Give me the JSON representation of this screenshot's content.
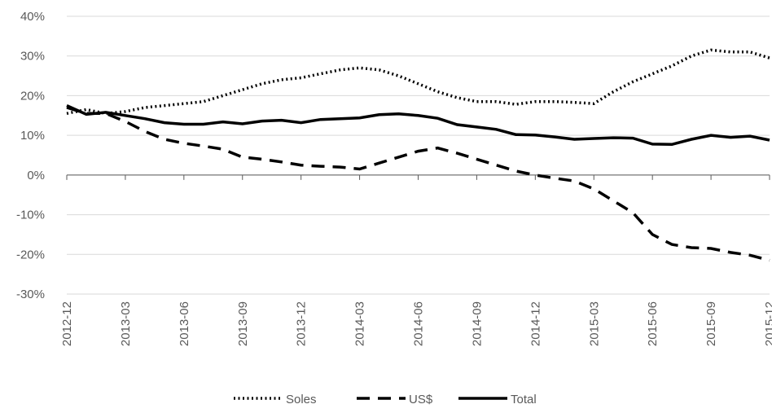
{
  "chart_data": {
    "type": "line",
    "categories": [
      "2012-12",
      null,
      null,
      "2013-03",
      null,
      null,
      "2013-06",
      null,
      null,
      "2013-09",
      null,
      null,
      "2013-12",
      null,
      null,
      "2014-03",
      null,
      null,
      "2014-06",
      null,
      null,
      "2014-09",
      null,
      null,
      "2014-12",
      null,
      null,
      "2015-03",
      null,
      null,
      "2015-06",
      null,
      null,
      "2015-09",
      null,
      null,
      "2015-12"
    ],
    "series": [
      {
        "name": "Soles",
        "color": "#000000",
        "style": "dotted",
        "values": [
          15.5,
          16.5,
          15.5,
          16,
          17,
          17.5,
          18,
          18.5,
          20,
          21.5,
          23,
          24,
          24.5,
          25.5,
          26.5,
          27,
          26.5,
          25,
          23,
          21,
          19.5,
          18.5,
          18.5,
          17.8,
          18.5,
          18.5,
          18.3,
          18,
          21,
          23.5,
          25.5,
          27.5,
          30,
          31.5,
          31,
          31,
          29.5
        ]
      },
      {
        "name": "US$",
        "color": "#000000",
        "style": "dashed",
        "values": [
          17,
          15.5,
          15.5,
          13.5,
          11,
          9,
          8,
          7.3,
          6.5,
          4.5,
          4,
          3.3,
          2.5,
          2.2,
          2,
          1.5,
          3,
          4.5,
          6,
          6.8,
          5.5,
          4,
          2.5,
          1,
          0,
          -0.8,
          -1.5,
          -3.5,
          -6.5,
          -9.5,
          -15,
          -17.5,
          -18.3,
          -18.5,
          -19.5,
          -20.2,
          -21.5
        ]
      },
      {
        "name": "Total",
        "color": "#000000",
        "style": "solid",
        "values": [
          17.5,
          15.3,
          15.8,
          15,
          14.2,
          13.2,
          12.8,
          12.8,
          13.4,
          12.9,
          13.6,
          13.8,
          13.2,
          14,
          14.2,
          14.4,
          15.2,
          15.4,
          15,
          14.3,
          12.7,
          12.1,
          11.5,
          10.2,
          10.1,
          9.6,
          9,
          9.2,
          9.4,
          9.3,
          7.8,
          7.7,
          9,
          10,
          9.5,
          9.8,
          8.8
        ]
      }
    ],
    "ylim": [
      -30,
      40
    ],
    "yticks": [
      {
        "value": -30,
        "label": "-30%"
      },
      {
        "value": -20,
        "label": "-20%"
      },
      {
        "value": -10,
        "label": "-10%"
      },
      {
        "value": 0,
        "label": "0%"
      },
      {
        "value": 10,
        "label": "10%"
      },
      {
        "value": 20,
        "label": "20%"
      },
      {
        "value": 30,
        "label": "30%"
      },
      {
        "value": 40,
        "label": "40%"
      }
    ],
    "grid": true,
    "legend": "bottom"
  }
}
